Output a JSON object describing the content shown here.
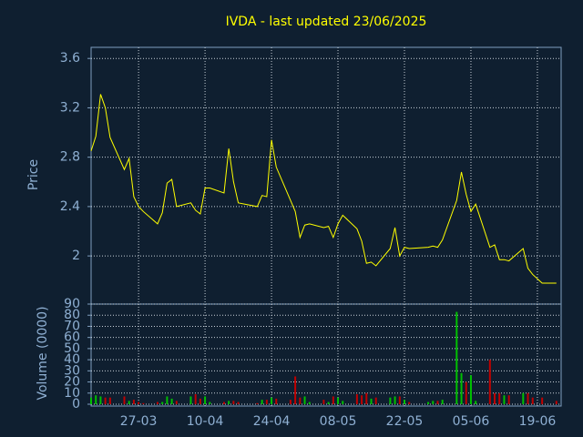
{
  "chart_data": [
    {
      "type": "line",
      "title": "IVDA - last updated 23/06/2025",
      "ylabel": "Price",
      "x": [
        "17-03",
        "18-03",
        "19-03",
        "20-03",
        "21-03",
        "24-03",
        "25-03",
        "26-03",
        "27-03",
        "28-03",
        "31-03",
        "01-04",
        "02-04",
        "03-04",
        "04-04",
        "07-04",
        "08-04",
        "09-04",
        "10-04",
        "11-04",
        "14-04",
        "15-04",
        "16-04",
        "17-04",
        "21-04",
        "22-04",
        "23-04",
        "24-04",
        "25-04",
        "28-04",
        "29-04",
        "30-04",
        "01-05",
        "02-05",
        "05-05",
        "06-05",
        "07-05",
        "08-05",
        "09-05",
        "12-05",
        "13-05",
        "14-05",
        "15-05",
        "16-05",
        "19-05",
        "20-05",
        "21-05",
        "22-05",
        "23-05",
        "27-05",
        "28-05",
        "29-05",
        "30-05",
        "02-06",
        "03-06",
        "04-06",
        "05-06",
        "06-06",
        "09-06",
        "10-06",
        "11-06",
        "12-06",
        "13-06",
        "16-06",
        "17-06",
        "18-06",
        "20-06",
        "23-06"
      ],
      "values": [
        2.85,
        2.97,
        3.31,
        3.2,
        2.96,
        2.7,
        2.79,
        2.48,
        2.4,
        2.36,
        2.26,
        2.35,
        2.59,
        2.62,
        2.4,
        2.43,
        2.37,
        2.34,
        2.55,
        2.55,
        2.51,
        2.87,
        2.6,
        2.43,
        2.4,
        2.49,
        2.48,
        2.94,
        2.72,
        2.45,
        2.36,
        2.15,
        2.25,
        2.26,
        2.23,
        2.24,
        2.15,
        2.26,
        2.33,
        2.22,
        2.12,
        1.94,
        1.95,
        1.92,
        2.06,
        2.23,
        2.0,
        2.07,
        2.06,
        2.07,
        2.08,
        2.07,
        2.13,
        2.45,
        2.68,
        2.5,
        2.36,
        2.42,
        2.07,
        2.09,
        1.97,
        1.97,
        1.96,
        2.06,
        1.9,
        1.85,
        1.78,
        1.78
      ],
      "color": "#ffff00",
      "xlim": [
        "17-03",
        "24-06"
      ],
      "xticks": [
        "27-03",
        "10-04",
        "24-04",
        "08-05",
        "22-05",
        "05-06",
        "19-06"
      ],
      "ylim": [
        1.61,
        3.69
      ],
      "yticks": [
        2,
        2.4,
        2.8,
        3.2,
        3.6
      ],
      "grid": true
    },
    {
      "type": "bar",
      "ylabel": "Volume (0000)",
      "x": [
        "17-03",
        "18-03",
        "19-03",
        "20-03",
        "21-03",
        "24-03",
        "25-03",
        "26-03",
        "27-03",
        "28-03",
        "31-03",
        "01-04",
        "02-04",
        "03-04",
        "04-04",
        "07-04",
        "08-04",
        "09-04",
        "10-04",
        "11-04",
        "14-04",
        "15-04",
        "16-04",
        "17-04",
        "21-04",
        "22-04",
        "23-04",
        "24-04",
        "25-04",
        "28-04",
        "29-04",
        "30-04",
        "01-05",
        "02-05",
        "05-05",
        "06-05",
        "07-05",
        "08-05",
        "09-05",
        "12-05",
        "13-05",
        "14-05",
        "15-05",
        "16-05",
        "19-05",
        "20-05",
        "21-05",
        "22-05",
        "23-05",
        "27-05",
        "28-05",
        "29-05",
        "30-05",
        "02-06",
        "03-06",
        "04-06",
        "05-06",
        "06-06",
        "09-06",
        "10-06",
        "11-06",
        "12-06",
        "13-06",
        "16-06",
        "17-06",
        "18-06",
        "20-06",
        "23-06"
      ],
      "values": [
        6,
        8,
        7,
        6,
        6,
        7,
        3,
        4,
        2,
        1,
        2,
        2,
        7,
        5,
        3,
        7,
        9,
        5,
        7,
        2,
        2,
        3,
        3,
        2,
        1,
        4,
        4,
        6,
        5,
        4,
        25,
        6,
        7,
        2,
        4,
        2,
        7,
        6,
        3,
        9,
        8,
        10,
        5,
        6,
        6,
        7,
        7,
        4,
        2,
        2,
        3,
        3,
        4,
        83,
        28,
        20,
        26,
        3,
        40,
        10,
        10,
        8,
        8,
        10,
        10,
        6,
        6,
        3
      ],
      "colors": [
        "#00c000",
        "#00c000",
        "#00c000",
        "#c00000",
        "#c00000",
        "#c00000",
        "#00c000",
        "#c00000",
        "#c00000",
        "#c00000",
        "#c00000",
        "#00c000",
        "#00c000",
        "#00c000",
        "#c00000",
        "#00c000",
        "#c00000",
        "#c00000",
        "#00c000",
        "#00c000",
        "#c00000",
        "#00c000",
        "#c00000",
        "#c00000",
        "#c00000",
        "#00c000",
        "#c00000",
        "#00c000",
        "#c00000",
        "#c00000",
        "#c00000",
        "#c00000",
        "#00c000",
        "#00c000",
        "#c00000",
        "#00c000",
        "#c00000",
        "#00c000",
        "#00c000",
        "#c00000",
        "#c00000",
        "#c00000",
        "#00c000",
        "#c00000",
        "#00c000",
        "#00c000",
        "#c00000",
        "#00c000",
        "#c00000",
        "#00c000",
        "#00c000",
        "#c00000",
        "#00c000",
        "#00c000",
        "#00c000",
        "#c00000",
        "#00c000",
        "#00c000",
        "#c00000",
        "#c00000",
        "#c00000",
        "#00c000",
        "#c00000",
        "#00c000",
        "#c00000",
        "#c00000",
        "#c00000",
        "#c00000"
      ],
      "xlim": [
        "17-03",
        "24-06"
      ],
      "xticks": [
        "27-03",
        "10-04",
        "24-04",
        "08-05",
        "22-05",
        "05-06",
        "19-06"
      ],
      "ylim": [
        0,
        90
      ],
      "yticks": [
        0,
        10,
        20,
        30,
        40,
        50,
        60,
        70,
        80,
        90
      ],
      "grid": true
    }
  ]
}
